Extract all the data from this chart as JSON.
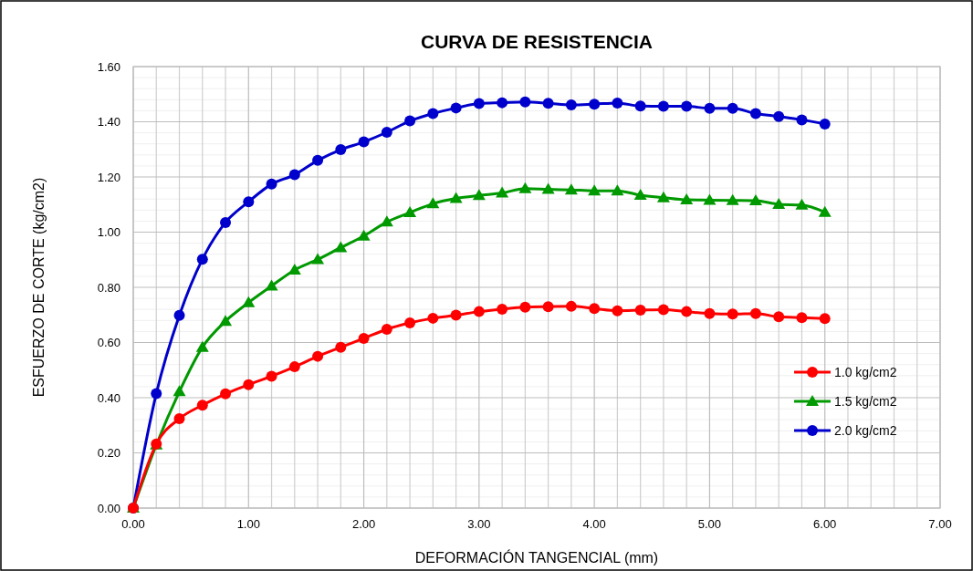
{
  "chart_data": {
    "type": "line",
    "title": "CURVA DE RESISTENCIA",
    "xlabel": "DEFORMACIÓN TANGENCIAL (mm)",
    "ylabel": "ESFUERZO DE CORTE (kg/cm2)",
    "x": [
      0,
      0.2,
      0.4,
      0.6,
      0.8,
      1.0,
      1.2,
      1.4,
      1.6,
      1.8,
      2.0,
      2.2,
      2.4,
      2.6,
      2.8,
      3.0,
      3.2,
      3.4,
      3.6,
      3.8,
      4.0,
      4.2,
      4.4,
      4.6,
      4.8,
      5.0,
      5.2,
      5.4,
      5.6,
      5.8,
      6.0
    ],
    "series": [
      {
        "name": "1.0 kg/cm2",
        "color": "#ff0000",
        "marker": "circle",
        "values": [
          0,
          0.232,
          0.324,
          0.373,
          0.414,
          0.447,
          0.478,
          0.512,
          0.55,
          0.583,
          0.615,
          0.648,
          0.671,
          0.688,
          0.699,
          0.712,
          0.721,
          0.728,
          0.73,
          0.731,
          0.723,
          0.715,
          0.717,
          0.719,
          0.712,
          0.705,
          0.703,
          0.705,
          0.693,
          0.69,
          0.687
        ]
      },
      {
        "name": "1.5 kg/cm2",
        "color": "#009900",
        "marker": "triangle",
        "values": [
          0,
          0.229,
          0.422,
          0.583,
          0.677,
          0.745,
          0.805,
          0.863,
          0.901,
          0.944,
          0.986,
          1.037,
          1.071,
          1.103,
          1.122,
          1.133,
          1.142,
          1.158,
          1.155,
          1.153,
          1.15,
          1.15,
          1.134,
          1.125,
          1.117,
          1.116,
          1.115,
          1.114,
          1.101,
          1.098,
          1.072
        ]
      },
      {
        "name": "2.0 kg/cm2",
        "color": "#0000cc",
        "marker": "circle",
        "values": [
          0,
          0.415,
          0.698,
          0.902,
          1.035,
          1.11,
          1.174,
          1.208,
          1.26,
          1.299,
          1.327,
          1.362,
          1.403,
          1.43,
          1.45,
          1.466,
          1.469,
          1.472,
          1.467,
          1.461,
          1.464,
          1.468,
          1.457,
          1.456,
          1.456,
          1.449,
          1.449,
          1.43,
          1.419,
          1.407,
          1.392
        ]
      }
    ],
    "xlim": [
      0,
      7
    ],
    "xticks": [
      {
        "value": 0,
        "label": "0.00"
      },
      {
        "value": 1,
        "label": "1.00"
      },
      {
        "value": 2,
        "label": "2.00"
      },
      {
        "value": 3,
        "label": "3.00"
      },
      {
        "value": 4,
        "label": "4.00"
      },
      {
        "value": 5,
        "label": "5.00"
      },
      {
        "value": 6,
        "label": "6.00"
      },
      {
        "value": 7,
        "label": "7.00"
      }
    ],
    "ylim": [
      0,
      1.6
    ],
    "yticks": [
      {
        "value": 0,
        "label": "0.00"
      },
      {
        "value": 0.2,
        "label": "0.20"
      },
      {
        "value": 0.4,
        "label": "0.40"
      },
      {
        "value": 0.6,
        "label": "0.60"
      },
      {
        "value": 0.8,
        "label": "0.80"
      },
      {
        "value": 1.0,
        "label": "1.00"
      },
      {
        "value": 1.2,
        "label": "1.20"
      },
      {
        "value": 1.4,
        "label": "1.40"
      },
      {
        "value": 1.6,
        "label": "1.60"
      }
    ],
    "grid": true,
    "legend": "right",
    "line_style": "solid"
  }
}
